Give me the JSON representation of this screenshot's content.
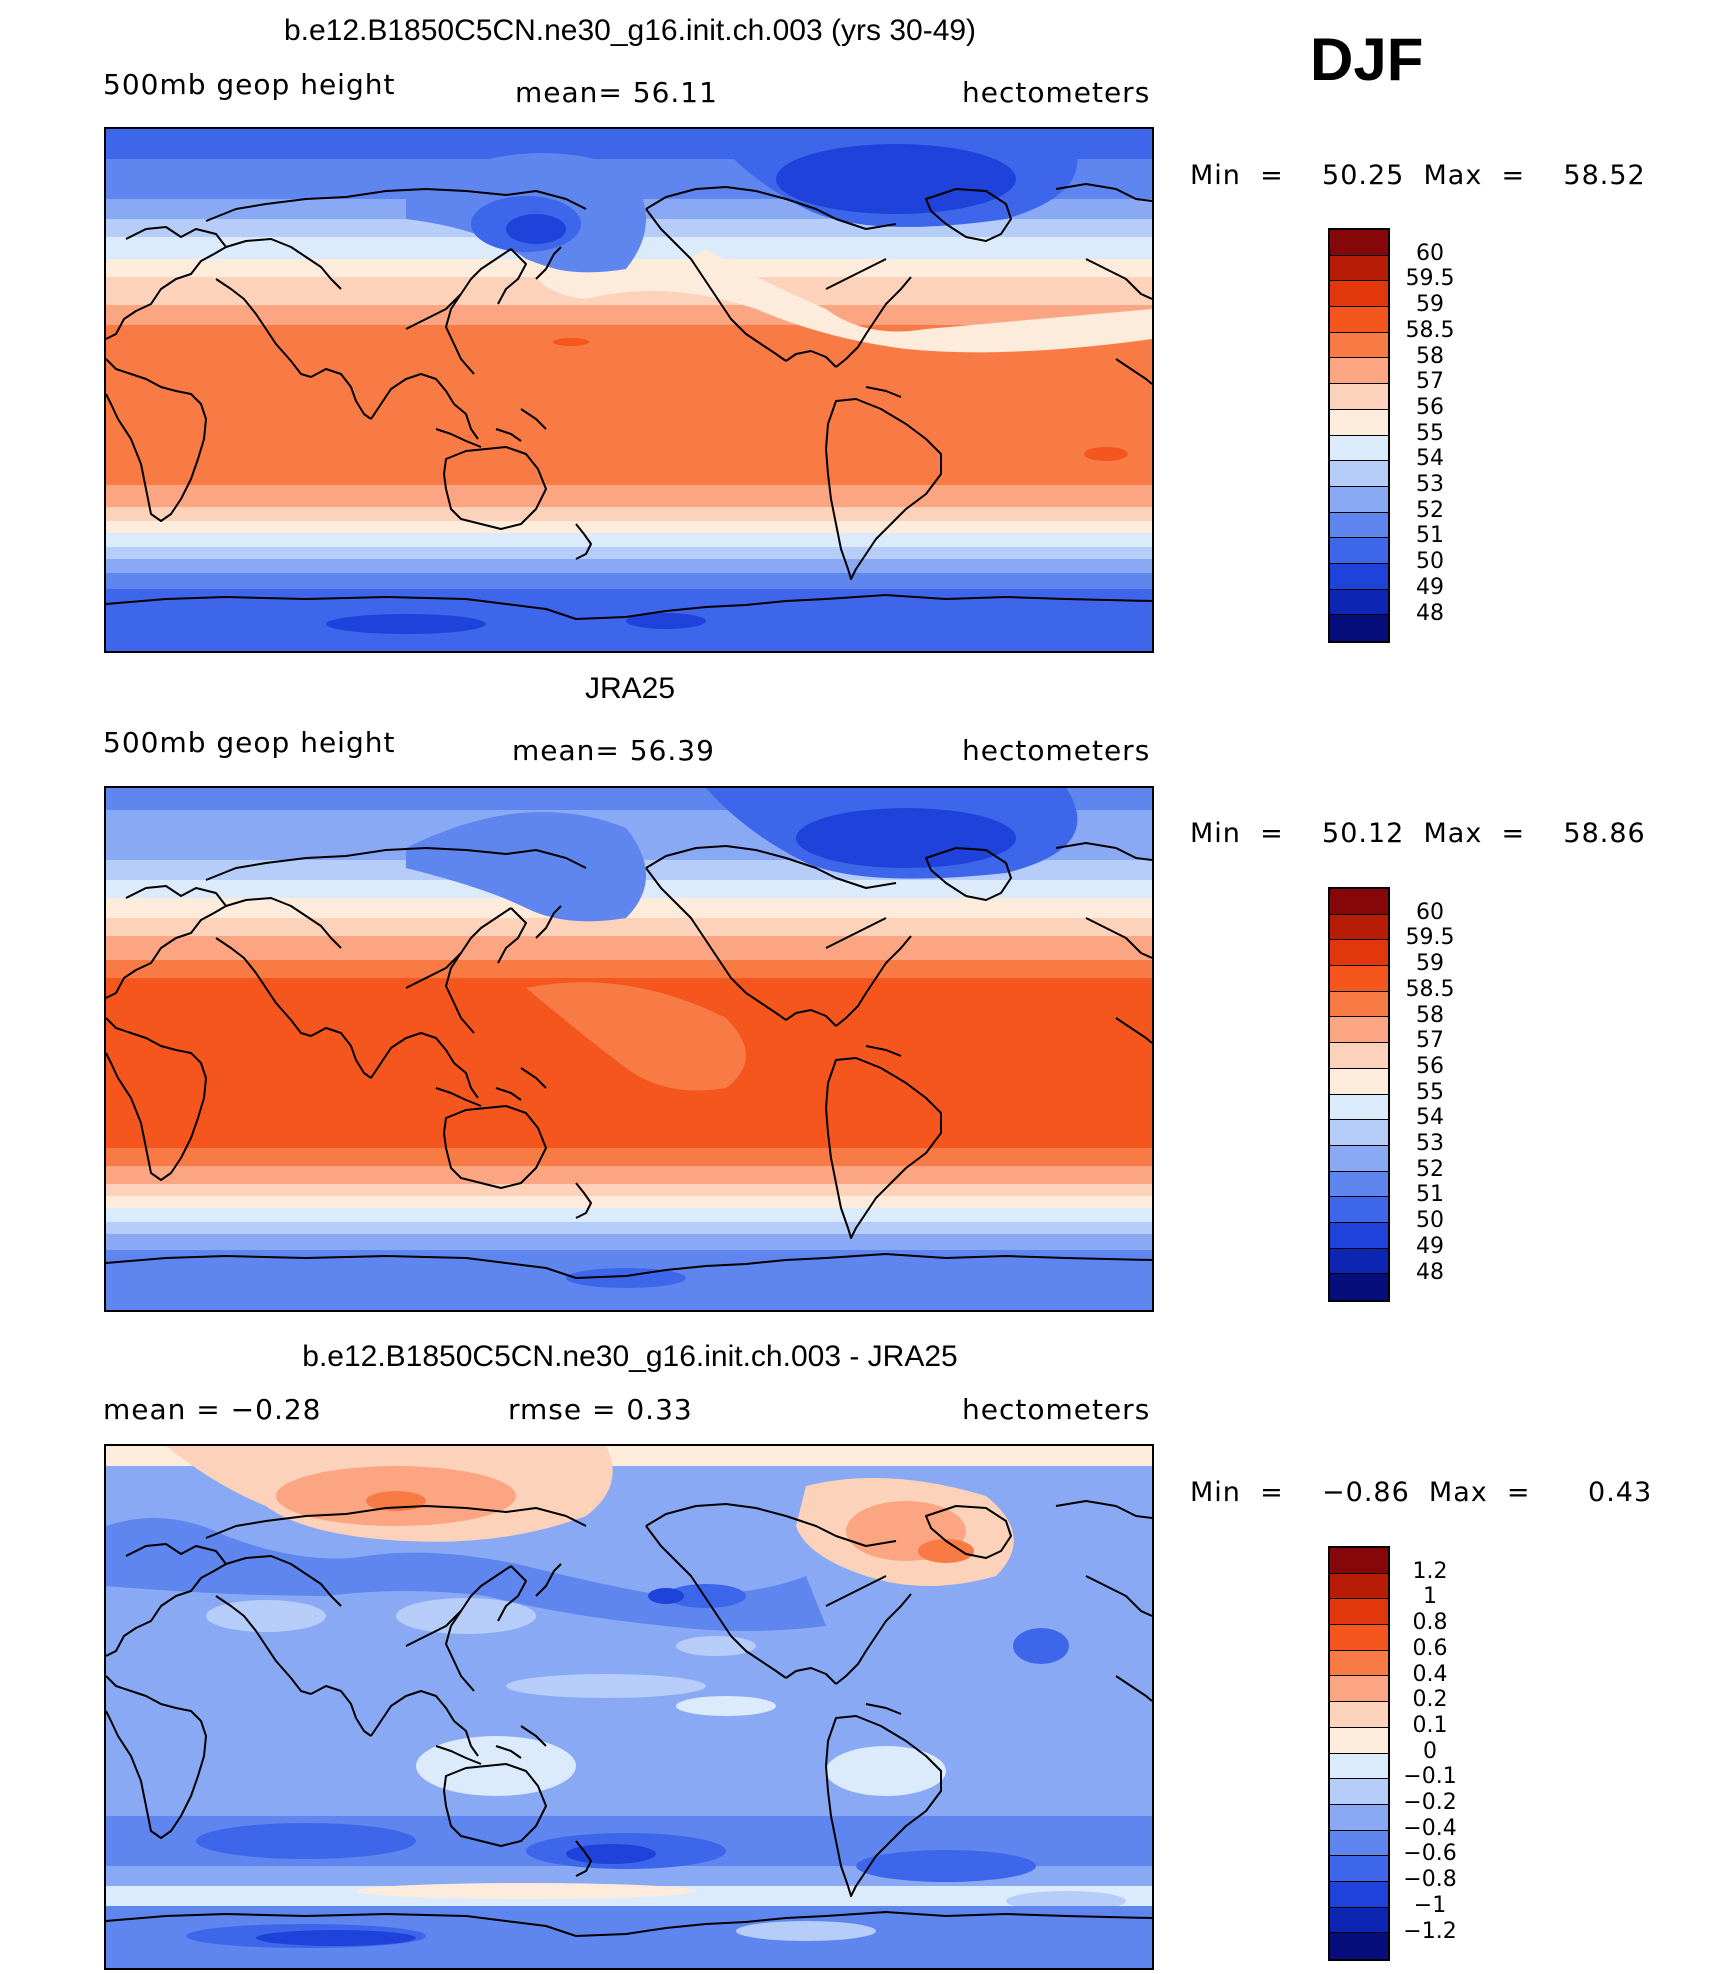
{
  "season": "DJF",
  "colors": {
    "60": "#85070a",
    "59.5": "#b71c06",
    "59": "#e2360d",
    "58.5": "#f4561e",
    "58": "#f87a44",
    "57": "#fba583",
    "56": "#fdd2bb",
    "55": "#fdebdc",
    "54": "#dcebfb",
    "53": "#b6cdfa",
    "52": "#8aa9f5",
    "51": "#5f85ee",
    "50": "#3e66ea",
    "49": "#1f43da",
    "48": "#0d25b3",
    "lowest": "#050e7a"
  },
  "panels": [
    {
      "title": "b.e12.B1850C5CN.ne30_g16.init.ch.003 (yrs 30-49)",
      "left_label": "500mb  geop  height",
      "center_label": "mean=   56.11",
      "right_label": "hectometers",
      "minmax": "Min  =    50.25  Max  =    58.52",
      "colorbar_levels": [
        "60",
        "59.5",
        "59",
        "58.5",
        "58",
        "57",
        "56",
        "55",
        "54",
        "53",
        "52",
        "51",
        "50",
        "49",
        "48"
      ],
      "field": "model"
    },
    {
      "title": "JRA25",
      "left_label": "500mb  geop  height",
      "center_label": "mean=   56.39",
      "right_label": "hectometers",
      "minmax": "Min  =    50.12  Max  =    58.86",
      "colorbar_levels": [
        "60",
        "59.5",
        "59",
        "58.5",
        "58",
        "57",
        "56",
        "55",
        "54",
        "53",
        "52",
        "51",
        "50",
        "49",
        "48"
      ],
      "field": "obs"
    },
    {
      "title": "b.e12.B1850C5CN.ne30_g16.init.ch.003 - JRA25",
      "left_label": "mean  =    −0.28",
      "center_label": "rmse  =     0.33",
      "right_label": "hectometers",
      "minmax": "Min  =    −0.86  Max  =      0.43",
      "colorbar_levels": [
        "1.2",
        "1",
        "0.8",
        "0.6",
        "0.4",
        "0.2",
        "0.1",
        "0",
        "−0.1",
        "−0.2",
        "−0.4",
        "−0.6",
        "−0.8",
        "−1",
        "−1.2"
      ],
      "field": "diff"
    }
  ]
}
